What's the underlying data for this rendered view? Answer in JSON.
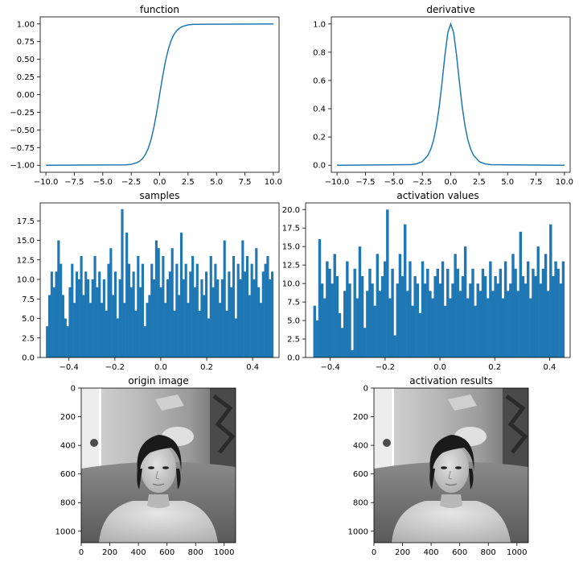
{
  "chart_data": [
    {
      "type": "line",
      "title": "function",
      "xlim": [
        -10.5,
        10.5
      ],
      "ylim": [
        -1.1,
        1.1
      ],
      "xticks": [
        -10,
        -7.5,
        -5,
        -2.5,
        0,
        2.5,
        5,
        7.5,
        10
      ],
      "xtick_labels": [
        "−10.0",
        "−7.5",
        "−5.0",
        "−2.5",
        "0.0",
        "2.5",
        "5.0",
        "7.5",
        "10.0"
      ],
      "yticks": [
        -1,
        -0.75,
        -0.5,
        -0.25,
        0,
        0.25,
        0.5,
        0.75,
        1
      ],
      "ytick_labels": [
        "−1.00",
        "−0.75",
        "−0.50",
        "−0.25",
        "0.00",
        "0.25",
        "0.50",
        "0.75",
        "1.00"
      ],
      "x": [
        -10,
        -3,
        -2.5,
        -2,
        -1.75,
        -1.5,
        -1.25,
        -1,
        -0.75,
        -0.5,
        -0.25,
        0,
        0.25,
        0.5,
        0.75,
        1,
        1.25,
        1.5,
        1.75,
        2,
        2.5,
        3,
        10
      ],
      "y": [
        -1.0,
        -0.995,
        -0.987,
        -0.964,
        -0.941,
        -0.905,
        -0.848,
        -0.762,
        -0.635,
        -0.462,
        -0.245,
        0.0,
        0.245,
        0.462,
        0.635,
        0.762,
        0.848,
        0.905,
        0.941,
        0.964,
        0.987,
        0.995,
        1.0
      ],
      "color": "#1f77b4",
      "grid": false
    },
    {
      "type": "line",
      "title": "derivative",
      "xlim": [
        -10.5,
        10.5
      ],
      "ylim": [
        -0.05,
        1.05
      ],
      "xticks": [
        -10,
        -7.5,
        -5,
        -2.5,
        0,
        2.5,
        5,
        7.5,
        10
      ],
      "xtick_labels": [
        "−10.0",
        "−7.5",
        "−5.0",
        "−2.5",
        "0.0",
        "2.5",
        "5.0",
        "7.5",
        "10.0"
      ],
      "yticks": [
        0,
        0.2,
        0.4,
        0.6,
        0.8,
        1.0
      ],
      "ytick_labels": [
        "0.0",
        "0.2",
        "0.4",
        "0.6",
        "0.8",
        "1.0"
      ],
      "x": [
        -10,
        -3.5,
        -3,
        -2.5,
        -2,
        -1.75,
        -1.5,
        -1.25,
        -1,
        -0.75,
        -0.5,
        -0.25,
        0,
        0.25,
        0.5,
        0.75,
        1,
        1.25,
        1.5,
        1.75,
        2,
        2.5,
        3,
        3.5,
        10
      ],
      "y": [
        0.0,
        0.004,
        0.01,
        0.026,
        0.071,
        0.115,
        0.181,
        0.281,
        0.42,
        0.597,
        0.786,
        0.94,
        1.0,
        0.94,
        0.786,
        0.597,
        0.42,
        0.281,
        0.181,
        0.115,
        0.071,
        0.026,
        0.01,
        0.004,
        0.0
      ],
      "color": "#1f77b4",
      "grid": false
    },
    {
      "type": "bar",
      "title": "samples",
      "xlim": [
        -0.525,
        0.515
      ],
      "ylim": [
        0,
        19.8
      ],
      "xticks": [
        -0.4,
        -0.2,
        0,
        0.2,
        0.4
      ],
      "xtick_labels": [
        "−0.4",
        "−0.2",
        "0.0",
        "0.2",
        "0.4"
      ],
      "yticks": [
        0,
        2.5,
        5,
        7.5,
        10,
        12.5,
        15,
        17.5
      ],
      "ytick_labels": [
        "0.0",
        "2.5",
        "5.0",
        "7.5",
        "10.0",
        "12.5",
        "15.0",
        "17.5"
      ],
      "bin_start": -0.5,
      "bin_end": 0.49,
      "counts": [
        4,
        8,
        11,
        9,
        11,
        15,
        12,
        8,
        5,
        4,
        9,
        12,
        7,
        11,
        10,
        13,
        8,
        11,
        10,
        7,
        10,
        13,
        9,
        11,
        7,
        10,
        6,
        12,
        14,
        8,
        11,
        5,
        10,
        19,
        7,
        16,
        12,
        9,
        11,
        6,
        13,
        9,
        12,
        4,
        7,
        8,
        12,
        10,
        15,
        14,
        9,
        13,
        7,
        10,
        11,
        14,
        6,
        12,
        8,
        16,
        10,
        12,
        7,
        11,
        13,
        9,
        12,
        6,
        10,
        8,
        11,
        5,
        13,
        9,
        12,
        10,
        7,
        10,
        15,
        6,
        11,
        9,
        13,
        5,
        12,
        10,
        15,
        11,
        13,
        8,
        12,
        10,
        14,
        9,
        7,
        11,
        12,
        13,
        10,
        11
      ],
      "color": "#1f77b4",
      "grid": false
    },
    {
      "type": "bar",
      "title": "activation values",
      "xlim": [
        -0.49,
        0.475
      ],
      "ylim": [
        0,
        20.9
      ],
      "xticks": [
        -0.4,
        -0.2,
        0,
        0.2,
        0.4
      ],
      "xtick_labels": [
        "−0.4",
        "−0.2",
        "0.0",
        "0.2",
        "0.4"
      ],
      "yticks": [
        0,
        2.5,
        5,
        7.5,
        10,
        12.5,
        15,
        17.5,
        20
      ],
      "ytick_labels": [
        "0.0",
        "2.5",
        "5.0",
        "7.5",
        "10.0",
        "12.5",
        "15.0",
        "17.5",
        "20.0"
      ],
      "bin_start": -0.462,
      "bin_end": 0.454,
      "counts": [
        7,
        5,
        16,
        10,
        8,
        13,
        12,
        10,
        14,
        11,
        6,
        4,
        9,
        13,
        10,
        1,
        12,
        8,
        15,
        11,
        4,
        9,
        12,
        10,
        7,
        14,
        9,
        11,
        13,
        20,
        8,
        12,
        3,
        10,
        14,
        11,
        18,
        9,
        13,
        7,
        11,
        10,
        6,
        13,
        10,
        12,
        9,
        8,
        11,
        12,
        10,
        13,
        7,
        12,
        8,
        10,
        14,
        12,
        9,
        11,
        15,
        8,
        10,
        12,
        7,
        10,
        9,
        12,
        11,
        8,
        13,
        9,
        11,
        10,
        12,
        8,
        13,
        9,
        10,
        14,
        12,
        9,
        17,
        11,
        10,
        13,
        8,
        12,
        11,
        15,
        10,
        12,
        14,
        9,
        18,
        11,
        13,
        12,
        10,
        13
      ],
      "color": "#1f77b4",
      "grid": false
    },
    {
      "type": "image",
      "title": "origin image",
      "xlim": [
        0,
        1080
      ],
      "ylim": [
        1080,
        0
      ],
      "xticks": [
        0,
        200,
        400,
        600,
        800,
        1000
      ],
      "xtick_labels": [
        "0",
        "200",
        "400",
        "600",
        "800",
        "1000"
      ],
      "yticks": [
        0,
        200,
        400,
        600,
        800,
        1000
      ],
      "ytick_labels": [
        "0",
        "200",
        "400",
        "600",
        "800",
        "1000"
      ],
      "content": "grayscale-portrait-photo"
    },
    {
      "type": "image",
      "title": "activation results",
      "xlim": [
        0,
        1080
      ],
      "ylim": [
        1080,
        0
      ],
      "xticks": [
        0,
        200,
        400,
        600,
        800,
        1000
      ],
      "xtick_labels": [
        "0",
        "200",
        "400",
        "600",
        "800",
        "1000"
      ],
      "yticks": [
        0,
        200,
        400,
        600,
        800,
        1000
      ],
      "ytick_labels": [
        "0",
        "200",
        "400",
        "600",
        "800",
        "1000"
      ],
      "content": "grayscale-portrait-photo"
    }
  ]
}
